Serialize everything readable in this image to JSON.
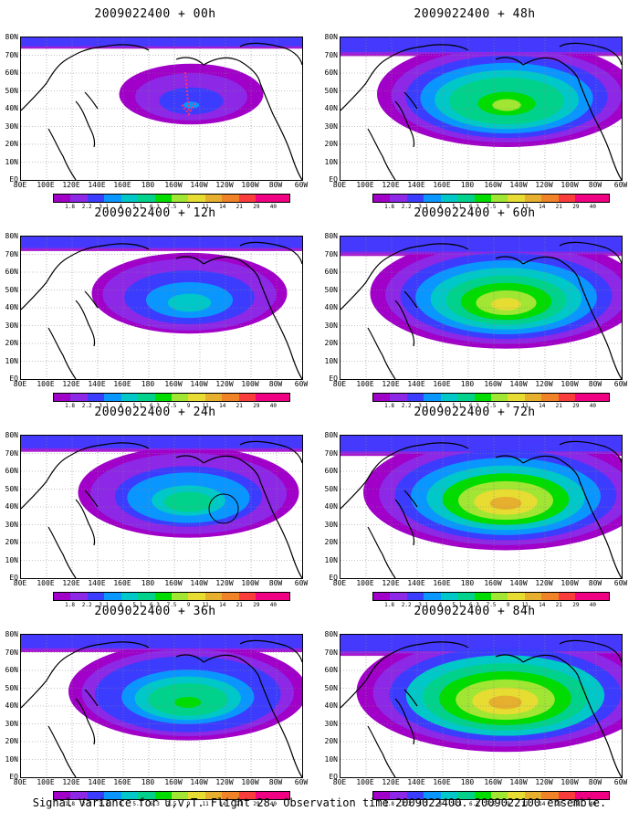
{
  "panels": [
    {
      "title": "2009022400 + 00h",
      "intensity": 0.25,
      "extent": 0.35,
      "annotation": "arrow"
    },
    {
      "title": "2009022400 + 12h",
      "intensity": 0.4,
      "extent": 0.55,
      "annotation": "none"
    },
    {
      "title": "2009022400 + 24h",
      "intensity": 0.5,
      "extent": 0.65,
      "annotation": "circle"
    },
    {
      "title": "2009022400 + 36h",
      "intensity": 0.6,
      "extent": 0.72,
      "annotation": "none"
    },
    {
      "title": "2009022400 + 48h",
      "intensity": 0.7,
      "extent": 0.8,
      "annotation": "none"
    },
    {
      "title": "2009022400 + 60h",
      "intensity": 0.78,
      "extent": 0.85,
      "annotation": "none"
    },
    {
      "title": "2009022400 + 72h",
      "intensity": 0.85,
      "extent": 0.9,
      "annotation": "none"
    },
    {
      "title": "2009022400 + 84h",
      "intensity": 0.9,
      "extent": 0.95,
      "annotation": "none"
    }
  ],
  "lat_labels": [
    "80N",
    "70N",
    "60N",
    "50N",
    "40N",
    "30N",
    "20N",
    "10N",
    "EQ"
  ],
  "lon_labels": [
    "80E",
    "100E",
    "120E",
    "140E",
    "160E",
    "180",
    "160W",
    "140W",
    "120W",
    "100W",
    "80W",
    "60W"
  ],
  "legend": {
    "labels": [
      "1.8",
      "2.2",
      "3.1",
      "4",
      "5.1",
      "6.3",
      "7.5",
      "9",
      "11",
      "14",
      "21",
      "29",
      "40"
    ],
    "colors": [
      "#a000c8",
      "#8c28e6",
      "#3c3cff",
      "#0a96ff",
      "#00c8c8",
      "#00d28c",
      "#00dc00",
      "#a0e632",
      "#e6dc32",
      "#e6af2d",
      "#f08228",
      "#fa3c3c",
      "#f00082"
    ]
  },
  "caption": "Signal Variance for u,v,T. Flight 28. Observation time 2009022400. 2009022100 ensemble."
}
